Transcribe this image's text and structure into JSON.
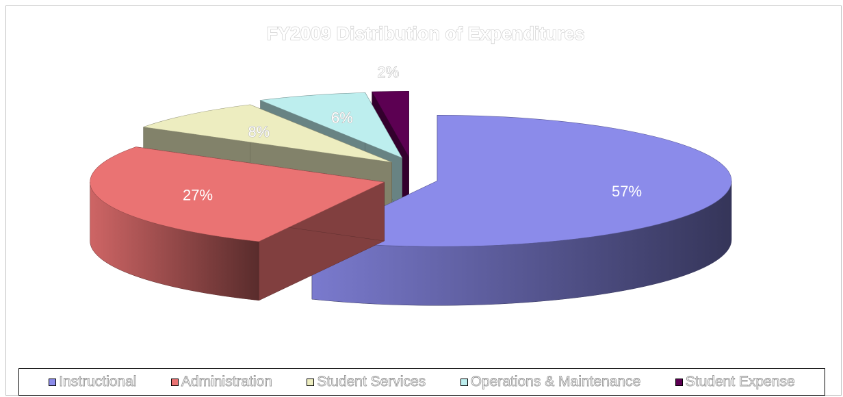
{
  "chart_data": {
    "type": "pie",
    "title": "FY2009 Distribution of Expenditures",
    "categories": [
      "Instructional",
      "Administration",
      "Student Services",
      "Operations & Maintenance",
      "Student Expense"
    ],
    "values": [
      57,
      27,
      8,
      6,
      2
    ],
    "labels": [
      "57%",
      "27%",
      "8%",
      "6%",
      "2%"
    ],
    "colors": [
      "#8b8bea",
      "#ea7373",
      "#ededc0",
      "#bdeeee",
      "#5c0052"
    ],
    "exploded": true,
    "three_d": true,
    "legend_position": "bottom"
  }
}
